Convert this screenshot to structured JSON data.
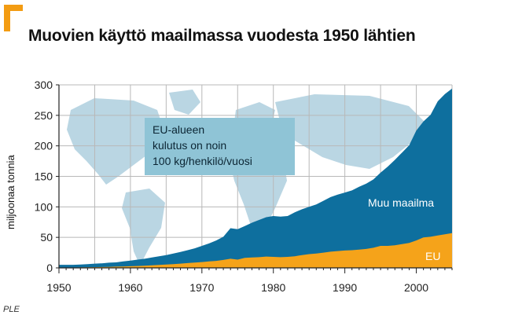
{
  "title": "Muovien käyttö maailmassa vuodesta 1950 lähtien",
  "source": "PLE",
  "colors": {
    "accent": "#f39c12",
    "world": "#0e6f9e",
    "eu": "#f5a31a",
    "map": "#bad6e3",
    "annotation_bg": "#8fc4d6"
  },
  "chart_data": {
    "type": "area",
    "title": "Muovien käyttö maailmassa vuodesta 1950 lähtien",
    "xlabel": "",
    "ylabel": "miljoonaa tonnia",
    "xlim": [
      1950,
      2005
    ],
    "ylim": [
      0,
      300
    ],
    "grid": true,
    "stacked": true,
    "x_ticks": [
      "1950",
      "1960",
      "1970",
      "1980",
      "1990",
      "2000"
    ],
    "y_ticks": [
      "0",
      "50",
      "100",
      "150",
      "200",
      "250",
      "300"
    ],
    "x": [
      1950,
      1951,
      1952,
      1953,
      1954,
      1955,
      1956,
      1957,
      1958,
      1959,
      1960,
      1961,
      1962,
      1963,
      1964,
      1965,
      1966,
      1967,
      1968,
      1969,
      1970,
      1971,
      1972,
      1973,
      1974,
      1975,
      1976,
      1977,
      1978,
      1979,
      1980,
      1981,
      1982,
      1983,
      1984,
      1985,
      1986,
      1987,
      1988,
      1989,
      1990,
      1991,
      1992,
      1993,
      1994,
      1995,
      1996,
      1997,
      1998,
      1999,
      2000,
      2001,
      2002,
      2003,
      2004,
      2005
    ],
    "series": [
      {
        "name": "EU",
        "values": [
          0.5,
          0.6,
          0.7,
          0.8,
          1,
          1.2,
          1.4,
          1.7,
          2,
          2.3,
          2.7,
          3.1,
          3.6,
          4.2,
          4.8,
          5.5,
          6.2,
          7,
          7.8,
          8.7,
          9.5,
          10.5,
          11.5,
          13,
          15,
          13.5,
          16.5,
          17,
          17.5,
          18.5,
          18,
          17.5,
          18,
          19,
          21,
          22.5,
          23.5,
          25,
          26.5,
          27.5,
          28.5,
          29,
          30,
          31,
          33,
          36,
          36,
          37,
          39,
          41,
          45,
          50,
          51,
          53,
          55,
          57
        ]
      },
      {
        "name": "Muu maailma",
        "values": [
          4.5,
          4.4,
          4.3,
          4.7,
          5,
          5.8,
          6.1,
          6.8,
          7,
          8.2,
          9.3,
          10.4,
          11.4,
          12.8,
          14.2,
          15.5,
          17.3,
          19,
          21.2,
          23.3,
          26.5,
          29.5,
          33.5,
          38,
          50,
          50,
          52,
          57,
          61,
          64.5,
          67,
          66.5,
          67,
          72,
          75,
          77.5,
          80.5,
          85,
          89.5,
          92.5,
          95,
          98,
          103,
          107,
          112,
          120,
          130,
          140,
          150,
          160,
          180,
          190,
          200,
          220,
          230,
          237
        ]
      }
    ],
    "annotation": [
      "EU-alueen",
      "kulutus on noin",
      "100 kg/henkilö/vuosi"
    ]
  }
}
